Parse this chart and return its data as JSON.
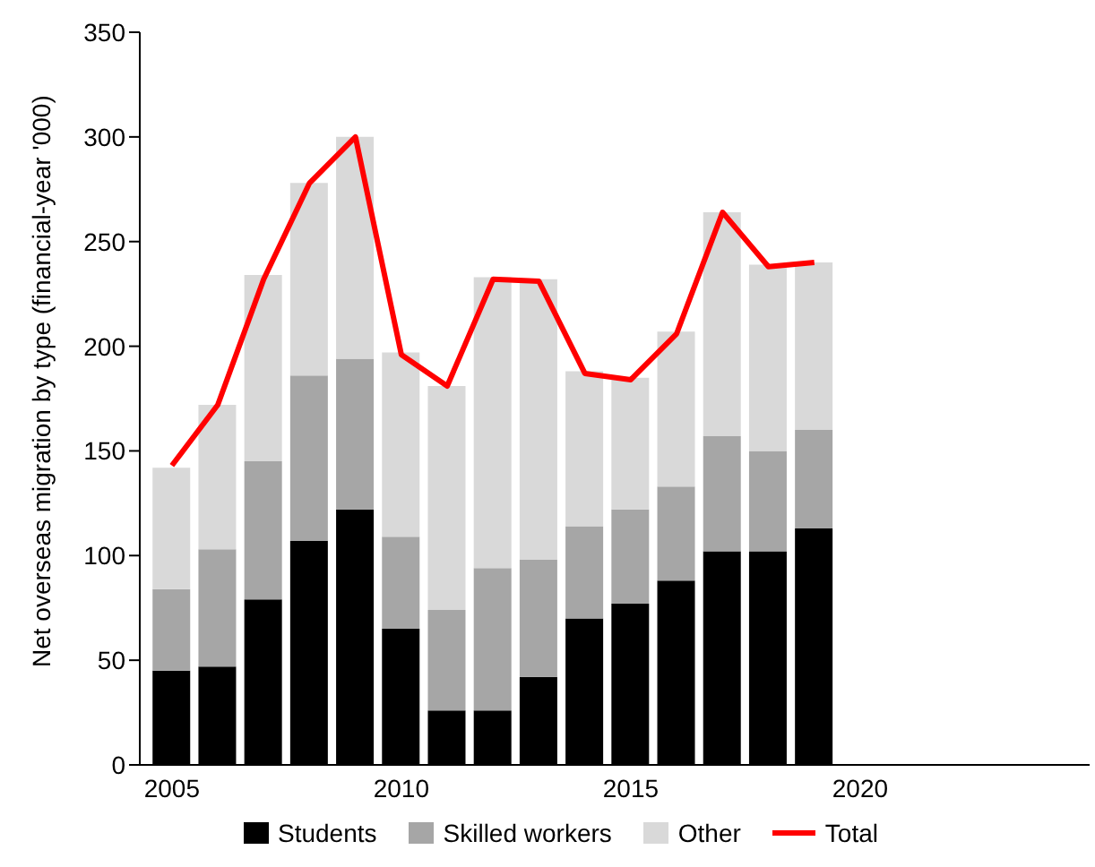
{
  "chart_data": {
    "type": "bar",
    "stacked": true,
    "ylabel": "Net overseas migration by type (financial-year '000)",
    "x": [
      2005,
      2006,
      2007,
      2008,
      2009,
      2010,
      2011,
      2012,
      2013,
      2014,
      2015,
      2016,
      2017,
      2018,
      2019
    ],
    "series": [
      {
        "name": "Students",
        "color": "#000000",
        "values": [
          45,
          47,
          79,
          107,
          122,
          65,
          26,
          26,
          42,
          70,
          77,
          88,
          102,
          102,
          113
        ]
      },
      {
        "name": "Skilled workers",
        "color": "#a6a6a6",
        "values": [
          39,
          56,
          66,
          79,
          72,
          44,
          48,
          68,
          56,
          44,
          45,
          45,
          55,
          48,
          47
        ]
      },
      {
        "name": "Other",
        "color": "#d9d9d9",
        "values": [
          58,
          69,
          89,
          92,
          106,
          88,
          107,
          139,
          134,
          74,
          63,
          74,
          107,
          89,
          80
        ]
      },
      {
        "name": "Total",
        "type": "line",
        "color": "#ff0000",
        "values": [
          143,
          172,
          232,
          278,
          300,
          196,
          181,
          232,
          231,
          187,
          184,
          206,
          264,
          238,
          240
        ]
      }
    ],
    "xlim": [
      2004.3,
      2025
    ],
    "xticks": [
      2005,
      2010,
      2015,
      2020
    ],
    "ylim": [
      0,
      350
    ],
    "yticks": [
      0,
      50,
      100,
      150,
      200,
      250,
      300,
      350
    ],
    "grid": false,
    "legend": "bottom"
  }
}
